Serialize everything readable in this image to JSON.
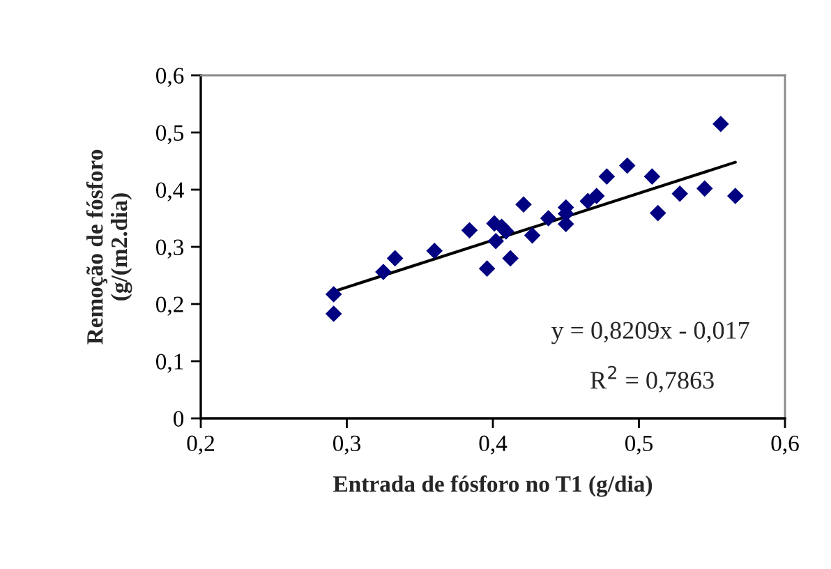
{
  "chart_data": {
    "type": "scatter",
    "xlabel": "Entrada de fósforo no T1 (g/dia)",
    "ylabel": "Remoção de fósforo\n(g/(m2.dia)",
    "xlim": [
      0.2,
      0.6
    ],
    "ylim": [
      0,
      0.6
    ],
    "xticks": [
      {
        "value": 0.2,
        "label": "0,2"
      },
      {
        "value": 0.3,
        "label": "0,3"
      },
      {
        "value": 0.4,
        "label": "0,4"
      },
      {
        "value": 0.5,
        "label": "0,5"
      },
      {
        "value": 0.6,
        "label": "0,6"
      }
    ],
    "yticks": [
      0,
      {
        "value": 0.1,
        "label": "0,1"
      },
      {
        "value": 0.2,
        "label": "0,2"
      },
      {
        "value": 0.3,
        "label": "0,3"
      },
      {
        "value": 0.4,
        "label": "0,4"
      },
      {
        "value": 0.5,
        "label": "0,5"
      },
      {
        "value": 0.6,
        "label": "0,6"
      }
    ],
    "grid": false,
    "legend": false,
    "series": [
      {
        "marker": "diamond",
        "color": "#000080",
        "x": [
          0.291,
          0.291,
          0.325,
          0.333,
          0.36,
          0.384,
          0.396,
          0.401,
          0.402,
          0.406,
          0.409,
          0.412,
          0.421,
          0.427,
          0.438,
          0.45,
          0.45,
          0.45,
          0.465,
          0.471,
          0.478,
          0.492,
          0.509,
          0.513,
          0.528,
          0.545,
          0.556,
          0.566
        ],
        "values": [
          0.217,
          0.183,
          0.256,
          0.28,
          0.293,
          0.329,
          0.262,
          0.341,
          0.31,
          0.335,
          0.327,
          0.28,
          0.374,
          0.32,
          0.35,
          0.369,
          0.358,
          0.34,
          0.38,
          0.389,
          0.423,
          0.442,
          0.423,
          0.359,
          0.393,
          0.402,
          0.515,
          0.389
        ]
      },
      {
        "type": "line",
        "marker": "none",
        "line_style": "solid",
        "color": "#000000",
        "x": [
          0.291,
          0.566
        ],
        "values": [
          0.222,
          0.448
        ]
      }
    ],
    "annotations": [
      "y = 0,8209x - 0,017",
      "R$^{2}$ = 0,7863"
    ]
  }
}
